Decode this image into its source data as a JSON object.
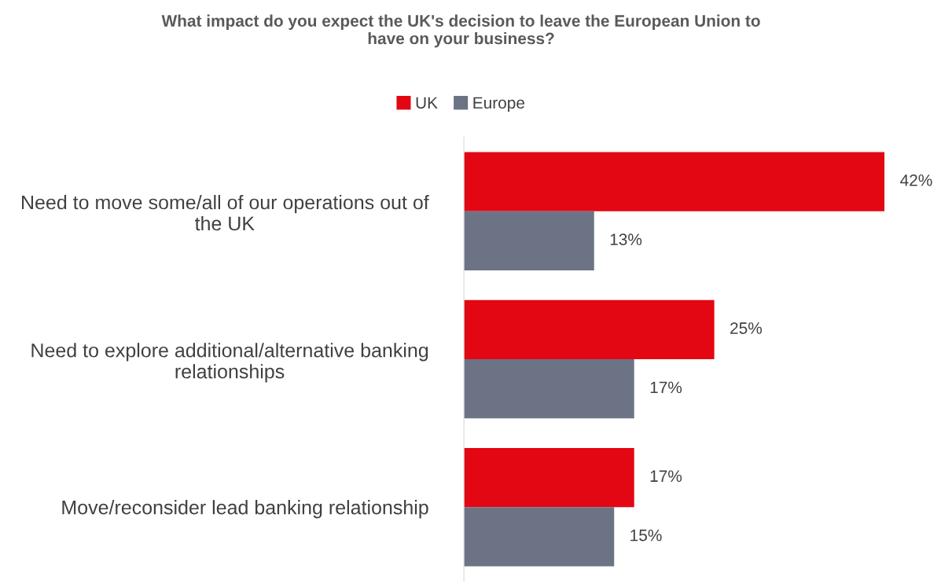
{
  "chart_data": {
    "type": "bar",
    "orientation": "horizontal",
    "title": "What impact do you expect the UK's decision to leave the European Union to\nhave on your business?",
    "categories": [
      "Need to move some/all of our operations out of\nthe UK",
      "Need to explore additional/alternative banking\nrelationships",
      "Move/reconsider lead banking relationship"
    ],
    "series": [
      {
        "name": "UK",
        "color": "#e30613",
        "values": [
          42,
          25,
          17
        ],
        "value_labels": [
          "42%",
          "25%",
          "17%"
        ]
      },
      {
        "name": "Europe",
        "color": "#6b7385",
        "values": [
          13,
          17,
          15
        ],
        "value_labels": [
          "13%",
          "17%",
          "15%"
        ]
      }
    ],
    "legend": "top",
    "grid": false,
    "tick_labels": "y"
  }
}
